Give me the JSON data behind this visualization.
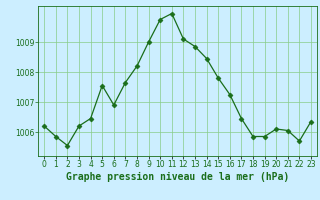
{
  "x": [
    0,
    1,
    2,
    3,
    4,
    5,
    6,
    7,
    8,
    9,
    10,
    11,
    12,
    13,
    14,
    15,
    16,
    17,
    18,
    19,
    20,
    21,
    22,
    23
  ],
  "y": [
    1006.2,
    1005.85,
    1005.55,
    1006.2,
    1006.45,
    1007.55,
    1006.9,
    1007.65,
    1008.2,
    1009.0,
    1009.75,
    1009.95,
    1009.1,
    1008.85,
    1008.45,
    1007.8,
    1007.25,
    1006.45,
    1005.85,
    1005.85,
    1006.1,
    1006.05,
    1005.7,
    1006.35
  ],
  "line_color": "#1a6e1a",
  "marker": "D",
  "marker_size": 2.5,
  "bg_color": "#cceeff",
  "grid_color": "#88cc88",
  "xlabel": "Graphe pression niveau de la mer (hPa)",
  "xlabel_color": "#1a6e1a",
  "xlabel_fontsize": 7,
  "yticks": [
    1006,
    1007,
    1008,
    1009
  ],
  "ylim": [
    1005.2,
    1010.2
  ],
  "xlim": [
    -0.5,
    23.5
  ],
  "tick_color": "#1a6e1a",
  "tick_fontsize": 5.5,
  "spine_color": "#1a6e1a",
  "label_bg_color": "#66aa66"
}
